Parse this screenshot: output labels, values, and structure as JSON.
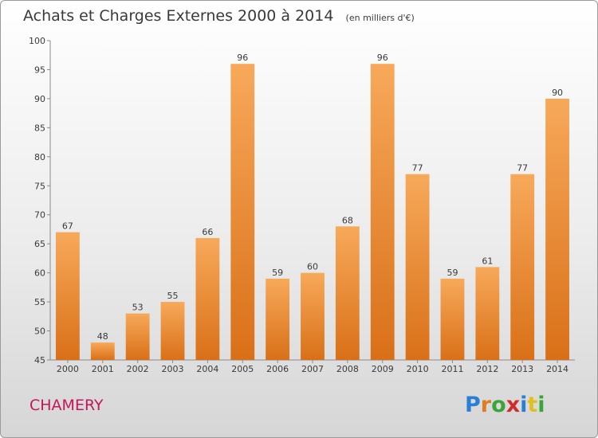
{
  "title": "Achats et Charges Externes 2000 à 2014",
  "unit": "(en milliers d'€)",
  "commune": "CHAMERY",
  "logo": {
    "text": "Proxiti",
    "letters": [
      "P",
      "r",
      "o",
      "x",
      "i",
      "t",
      "i"
    ],
    "colors": [
      "#2a7fd4",
      "#e07b20",
      "#3aa63a",
      "#d42a2a",
      "#2a7fd4",
      "#e0c020",
      "#3aa63a"
    ]
  },
  "colors": {
    "bar_top": "#f7a95a",
    "bar_bottom": "#d97018",
    "commune": "#c2185b"
  },
  "chart_data": {
    "type": "bar",
    "title": "Achats et Charges Externes 2000 à 2014",
    "subtitle": "(en milliers d'€)",
    "xlabel": "",
    "ylabel": "",
    "categories": [
      "2000",
      "2001",
      "2002",
      "2003",
      "2004",
      "2005",
      "2006",
      "2007",
      "2008",
      "2009",
      "2010",
      "2011",
      "2012",
      "2013",
      "2014"
    ],
    "values": [
      67,
      48,
      53,
      55,
      66,
      96,
      59,
      60,
      68,
      96,
      77,
      59,
      61,
      77,
      90
    ],
    "ylim": [
      45,
      100
    ],
    "yticks": [
      45,
      50,
      55,
      60,
      65,
      70,
      75,
      80,
      85,
      90,
      95,
      100
    ],
    "grid": false,
    "data_labels": true
  }
}
